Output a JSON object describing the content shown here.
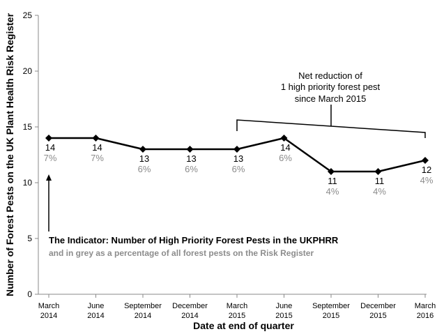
{
  "chart_data": {
    "type": "line",
    "xlabel": "Date at end of quarter",
    "ylabel": "Number of Forest Pests on the UK Plant Health Risk Register",
    "ylim": [
      0,
      25
    ],
    "yticks": [
      0,
      5,
      10,
      15,
      20,
      25
    ],
    "categories": [
      [
        "March",
        "2014"
      ],
      [
        "June",
        "2014"
      ],
      [
        "September",
        "2014"
      ],
      [
        "December",
        "2014"
      ],
      [
        "March",
        "2015"
      ],
      [
        "June",
        "2015"
      ],
      [
        "September",
        "2015"
      ],
      [
        "December",
        "2015"
      ],
      [
        "March",
        "2016"
      ]
    ],
    "values": [
      14,
      14,
      13,
      13,
      13,
      14,
      11,
      11,
      12
    ],
    "value_labels": [
      "14",
      "14",
      "13",
      "13",
      "13",
      "14",
      "11",
      "11",
      "12"
    ],
    "percent_labels": [
      "7%",
      "7%",
      "6%",
      "6%",
      "6%",
      "6%",
      "4%",
      "4%",
      "4%"
    ],
    "line_color": "#000000",
    "percent_color": "#8c8c8c",
    "grid": false,
    "annotation_lines": [
      "Net reduction of",
      "1 high priority forest pest",
      "since March 2015"
    ],
    "legend_main": "The Indicator:  Number of High Priority  Forest Pests in the UKPHRR",
    "legend_sub": "and in grey as a percentage of all forest pests on the Risk Register"
  }
}
